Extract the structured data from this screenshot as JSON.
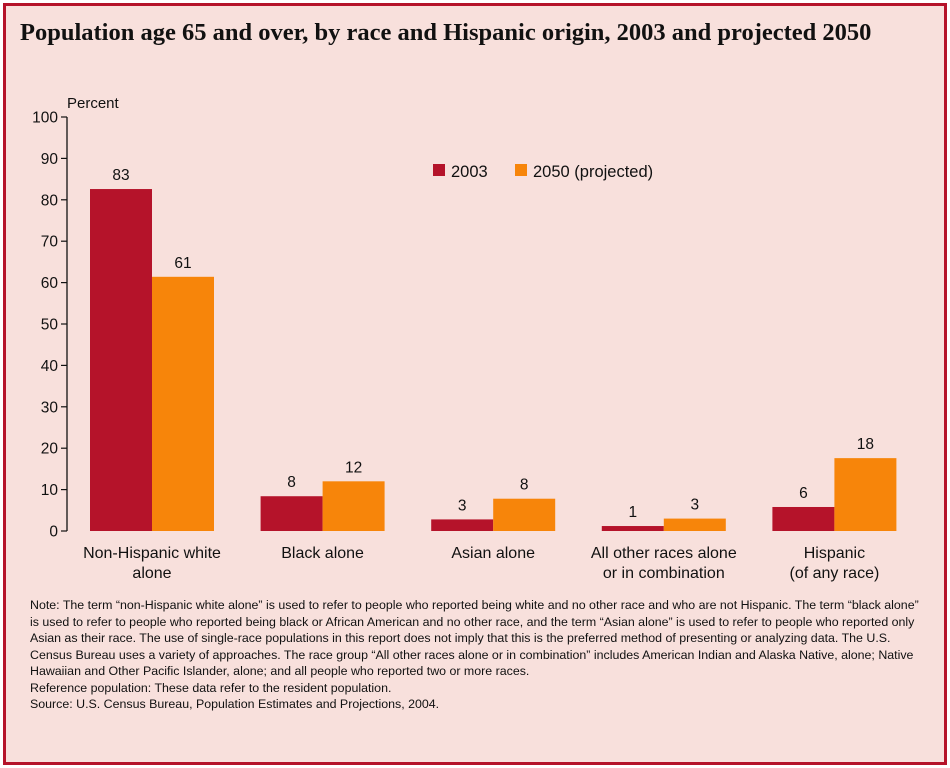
{
  "title": "Population age 65 and over, by race and Hispanic origin, 2003 and projected 2050",
  "notes": {
    "note": "Note: The term “non-Hispanic white alone” is used to refer to people who reported being white and no other race and who are not Hispanic. The term “black alone” is used to refer to people who reported being black or African American and no other race, and the term “Asian alone” is used to refer to people who reported only Asian as their race.  The use of single-race populations in this report does not imply that this is the preferred method of presenting or analyzing data. The U.S. Census Bureau uses a variety of approaches. The race group “All other races alone or in combination” includes American Indian and Alaska Native, alone; Native Hawaiian and Other Pacific Islander, alone; and all people who reported two or more races.",
    "reference": "Reference population: These data refer to the resident population.",
    "source": "Source:  U.S. Census Bureau, Population Estimates and Projections, 2004."
  },
  "chart_data": {
    "type": "bar",
    "ylabel": "Percent",
    "ylim": [
      0,
      100
    ],
    "yticks": [
      0,
      10,
      20,
      30,
      40,
      50,
      60,
      70,
      80,
      90,
      100
    ],
    "grid": false,
    "legend_position": "top-center",
    "categories": [
      [
        "Non-Hispanic white",
        "alone"
      ],
      [
        "Black alone"
      ],
      [
        "Asian alone"
      ],
      [
        "All other races alone",
        "or in combination"
      ],
      [
        "Hispanic",
        "(of any race)"
      ]
    ],
    "series": [
      {
        "name": "2003",
        "color": "#b5132a",
        "values": [
          82.6,
          8.4,
          2.8,
          1.2,
          5.8
        ],
        "labels": [
          "83",
          "8",
          "3",
          "1",
          "6"
        ]
      },
      {
        "name": "2050 (projected)",
        "color": "#f7850a",
        "values": [
          61.4,
          12.0,
          7.8,
          3.0,
          17.6
        ],
        "labels": [
          "61",
          "12",
          "8",
          "3",
          "18"
        ]
      }
    ]
  }
}
